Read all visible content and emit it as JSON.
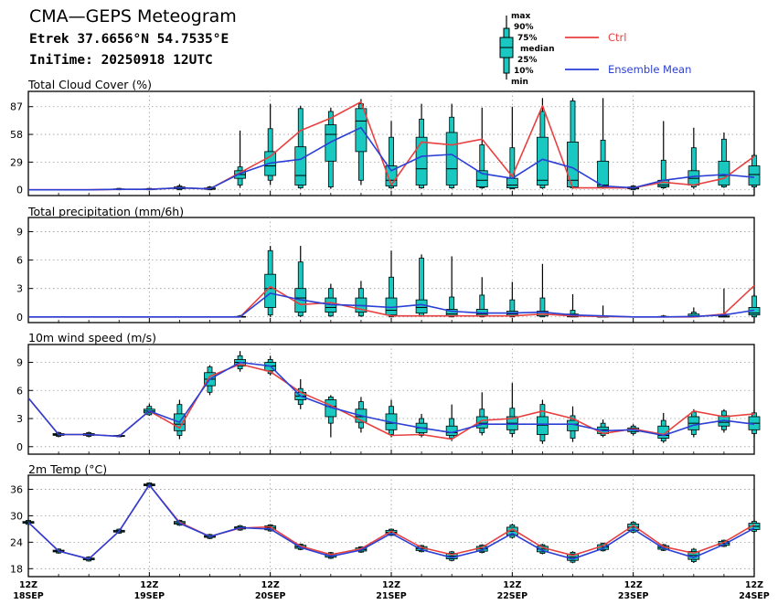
{
  "header": {
    "title": "CMA—GEPS Meteogram",
    "location": "Etrek 37.6656°N 54.7535°E",
    "init_time": "IniTime: 20250918 12UTC"
  },
  "legend": {
    "box_labels": [
      "max",
      "90%",
      "75%",
      "median",
      "25%",
      "10%",
      "min"
    ],
    "ctrl_label": "Ctrl",
    "mean_label": "Ensemble Mean",
    "ctrl_color": "#e84040",
    "mean_color": "#2a3fd6",
    "box_color": "#19c8c0"
  },
  "x_axis": {
    "ticks": [
      {
        "t": 0,
        "hour": "12Z",
        "date": "18SEP"
      },
      {
        "t": 24,
        "hour": "12Z",
        "date": "19SEP"
      },
      {
        "t": 48,
        "hour": "12Z",
        "date": "20SEP"
      },
      {
        "t": 72,
        "hour": "12Z",
        "date": "21SEP"
      },
      {
        "t": 96,
        "hour": "12Z",
        "date": "22SEP"
      },
      {
        "t": 120,
        "hour": "12Z",
        "date": "23SEP"
      },
      {
        "t": 144,
        "hour": "12Z",
        "date": "24SEP"
      }
    ]
  },
  "chart_data": [
    {
      "type": "box",
      "title": "Total Cloud Cover (%)",
      "ylim": [
        -6,
        103
      ],
      "yticks": [
        0,
        29,
        58,
        87
      ],
      "times": [
        0,
        6,
        12,
        18,
        24,
        30,
        36,
        42,
        48,
        54,
        60,
        66,
        72,
        78,
        84,
        90,
        96,
        102,
        108,
        114,
        120,
        126,
        132,
        138,
        144
      ],
      "ctrl": [
        0,
        0,
        0,
        0.5,
        0.5,
        2,
        1,
        18,
        35,
        62,
        75,
        92,
        5,
        50,
        47,
        53,
        14,
        88,
        2,
        2,
        2,
        8,
        5,
        12,
        35
      ],
      "mean": [
        0,
        0,
        0,
        0.5,
        0.5,
        2,
        1,
        17,
        28,
        32,
        50,
        65,
        20,
        35,
        37,
        17,
        12,
        32,
        23,
        4,
        2,
        10,
        14,
        16,
        13
      ],
      "boxes": [
        {
          "t": 18,
          "min": 0,
          "p10": 0,
          "p25": 0.5,
          "med": 0.5,
          "p75": 1,
          "p90": 1.5,
          "max": 2
        },
        {
          "t": 24,
          "min": 0,
          "p10": 0,
          "p25": 0.5,
          "med": 0.5,
          "p75": 1,
          "p90": 1.5,
          "max": 2
        },
        {
          "t": 30,
          "min": 0,
          "p10": 0,
          "p25": 1,
          "med": 2,
          "p75": 3,
          "p90": 4,
          "max": 6
        },
        {
          "t": 36,
          "min": 0,
          "p10": 0,
          "p25": 0.5,
          "med": 1,
          "p75": 2,
          "p90": 3,
          "max": 4
        },
        {
          "t": 42,
          "min": 2,
          "p10": 5,
          "p25": 12,
          "med": 16,
          "p75": 20,
          "p90": 24,
          "max": 62
        },
        {
          "t": 48,
          "min": 5,
          "p10": 10,
          "p25": 15,
          "med": 25,
          "p75": 40,
          "p90": 64,
          "max": 90
        },
        {
          "t": 54,
          "min": 1,
          "p10": 2,
          "p25": 5,
          "med": 15,
          "p75": 45,
          "p90": 85,
          "max": 88
        },
        {
          "t": 60,
          "min": 1,
          "p10": 3,
          "p25": 30,
          "med": 58,
          "p75": 68,
          "p90": 82,
          "max": 86
        },
        {
          "t": 66,
          "min": 5,
          "p10": 10,
          "p25": 40,
          "med": 72,
          "p75": 85,
          "p90": 90,
          "max": 95
        },
        {
          "t": 72,
          "min": 1,
          "p10": 2,
          "p25": 4,
          "med": 10,
          "p75": 25,
          "p90": 55,
          "max": 72
        },
        {
          "t": 78,
          "min": 1,
          "p10": 2,
          "p25": 5,
          "med": 22,
          "p75": 55,
          "p90": 74,
          "max": 90
        },
        {
          "t": 84,
          "min": 1,
          "p10": 2,
          "p25": 5,
          "med": 22,
          "p75": 60,
          "p90": 76,
          "max": 90
        },
        {
          "t": 90,
          "min": 1,
          "p10": 2,
          "p25": 3,
          "med": 10,
          "p75": 20,
          "p90": 47,
          "max": 86
        },
        {
          "t": 96,
          "min": 1,
          "p10": 1,
          "p25": 2,
          "med": 5,
          "p75": 12,
          "p90": 44,
          "max": 87
        },
        {
          "t": 102,
          "min": 1,
          "p10": 2,
          "p25": 5,
          "med": 10,
          "p75": 55,
          "p90": 82,
          "max": 96
        },
        {
          "t": 108,
          "min": 1,
          "p10": 2,
          "p25": 3,
          "med": 10,
          "p75": 50,
          "p90": 93,
          "max": 96
        },
        {
          "t": 114,
          "min": 1,
          "p10": 2,
          "p25": 3,
          "med": 5,
          "p75": 30,
          "p90": 52,
          "max": 96
        },
        {
          "t": 120,
          "min": 0,
          "p10": 0,
          "p25": 1,
          "med": 2,
          "p75": 3,
          "p90": 4,
          "max": 5
        },
        {
          "t": 126,
          "min": 1,
          "p10": 2,
          "p25": 3,
          "med": 5,
          "p75": 10,
          "p90": 31,
          "max": 72
        },
        {
          "t": 132,
          "min": 1,
          "p10": 3,
          "p25": 5,
          "med": 12,
          "p75": 20,
          "p90": 44,
          "max": 65
        },
        {
          "t": 138,
          "min": 2,
          "p10": 3,
          "p25": 5,
          "med": 15,
          "p75": 30,
          "p90": 53,
          "max": 60
        },
        {
          "t": 144,
          "min": 2,
          "p10": 3,
          "p25": 5,
          "med": 16,
          "p75": 25,
          "p90": 36,
          "max": 38
        }
      ]
    },
    {
      "type": "box",
      "title": "Total precipitation (mm/6h)",
      "ylim": [
        -0.6,
        10.5
      ],
      "yticks": [
        0,
        3,
        6,
        9
      ],
      "times": [
        0,
        6,
        12,
        18,
        24,
        30,
        36,
        42,
        48,
        54,
        60,
        66,
        72,
        78,
        84,
        90,
        96,
        102,
        108,
        114,
        120,
        126,
        132,
        138,
        144
      ],
      "ctrl": [
        0,
        0,
        0,
        0,
        0,
        0,
        0,
        0,
        3.2,
        1.3,
        1.5,
        0.8,
        0.1,
        0.1,
        0.1,
        0.1,
        0.1,
        0.3,
        0.1,
        0.05,
        0,
        0,
        0,
        0.3,
        3.3
      ],
      "mean": [
        0,
        0,
        0,
        0,
        0,
        0,
        0,
        0,
        2.5,
        1.8,
        1.3,
        1.2,
        1.0,
        1.3,
        0.6,
        0.4,
        0.4,
        0.5,
        0.2,
        0.1,
        0,
        0,
        0.05,
        0.2,
        0.7
      ],
      "boxes": [
        {
          "t": 42,
          "min": 0,
          "p10": 0,
          "p25": 0,
          "med": 0,
          "p75": 0.05,
          "p90": 0.1,
          "max": 0.2
        },
        {
          "t": 48,
          "min": 0,
          "p10": 0.2,
          "p25": 1,
          "med": 3,
          "p75": 4.5,
          "p90": 7,
          "max": 7.5
        },
        {
          "t": 54,
          "min": 0,
          "p10": 0.1,
          "p25": 0.5,
          "med": 2,
          "p75": 3,
          "p90": 5.8,
          "max": 7.5
        },
        {
          "t": 60,
          "min": 0,
          "p10": 0.1,
          "p25": 0.5,
          "med": 1,
          "p75": 2,
          "p90": 3,
          "max": 3.5
        },
        {
          "t": 66,
          "min": 0,
          "p10": 0.1,
          "p25": 0.5,
          "med": 1.2,
          "p75": 2,
          "p90": 3,
          "max": 3.8
        },
        {
          "t": 72,
          "min": 0,
          "p10": 0,
          "p25": 0.2,
          "med": 0.7,
          "p75": 2,
          "p90": 4.2,
          "max": 7
        },
        {
          "t": 78,
          "min": 0,
          "p10": 0.1,
          "p25": 0.4,
          "med": 1,
          "p75": 1.8,
          "p90": 6.2,
          "max": 6.6
        },
        {
          "t": 84,
          "min": 0,
          "p10": 0,
          "p25": 0.1,
          "med": 0.3,
          "p75": 0.8,
          "p90": 2.1,
          "max": 6.4
        },
        {
          "t": 90,
          "min": 0,
          "p10": 0,
          "p25": 0.1,
          "med": 0.3,
          "p75": 0.8,
          "p90": 2.3,
          "max": 4.2
        },
        {
          "t": 96,
          "min": 0,
          "p10": 0,
          "p25": 0.1,
          "med": 0.3,
          "p75": 0.6,
          "p90": 1.8,
          "max": 3.7
        },
        {
          "t": 102,
          "min": 0,
          "p10": 0,
          "p25": 0.1,
          "med": 0.3,
          "p75": 0.6,
          "p90": 2,
          "max": 5.6
        },
        {
          "t": 108,
          "min": 0,
          "p10": 0,
          "p25": 0,
          "med": 0.1,
          "p75": 0.3,
          "p90": 0.7,
          "max": 2.4
        },
        {
          "t": 114,
          "min": 0,
          "p10": 0,
          "p25": 0,
          "med": 0,
          "p75": 0.05,
          "p90": 0.1,
          "max": 1.2
        },
        {
          "t": 126,
          "min": 0,
          "p10": 0,
          "p25": 0,
          "med": 0,
          "p75": 0.05,
          "p90": 0.1,
          "max": 0.2
        },
        {
          "t": 132,
          "min": 0,
          "p10": 0,
          "p25": 0,
          "med": 0.1,
          "p75": 0.3,
          "p90": 0.5,
          "max": 1
        },
        {
          "t": 138,
          "min": 0,
          "p10": 0,
          "p25": 0,
          "med": 0,
          "p75": 0.1,
          "p90": 0.3,
          "max": 3
        },
        {
          "t": 144,
          "min": 0,
          "p10": 0,
          "p25": 0.2,
          "med": 0.4,
          "p75": 1,
          "p90": 2.2,
          "max": 2.4
        }
      ]
    },
    {
      "type": "box",
      "title": "10m wind speed (m/s)",
      "ylim": [
        -0.8,
        10.9
      ],
      "yticks": [
        0,
        3,
        6,
        9
      ],
      "times": [
        0,
        6,
        12,
        18,
        24,
        30,
        36,
        42,
        48,
        54,
        60,
        66,
        72,
        78,
        84,
        90,
        96,
        102,
        108,
        114,
        120,
        126,
        132,
        138,
        144
      ],
      "ctrl": [
        5.2,
        1.3,
        1.3,
        1.1,
        3.8,
        2.0,
        7.5,
        8.8,
        8.0,
        5.8,
        4.4,
        2.8,
        1.2,
        1.3,
        0.8,
        2.8,
        3.0,
        3.8,
        3.0,
        1.4,
        1.9,
        1.3,
        3.8,
        3.2,
        3.5
      ],
      "mean": [
        5.2,
        1.3,
        1.3,
        1.1,
        3.8,
        2.6,
        7.2,
        9.0,
        8.6,
        5.4,
        4.2,
        3.3,
        2.6,
        2.0,
        1.5,
        2.4,
        2.4,
        2.4,
        2.4,
        1.7,
        1.8,
        1.2,
        2.3,
        2.8,
        2.4
      ],
      "boxes": [
        {
          "t": 6,
          "min": 1,
          "p10": 1.1,
          "p25": 1.2,
          "med": 1.3,
          "p75": 1.4,
          "p90": 1.5,
          "max": 1.6
        },
        {
          "t": 12,
          "min": 1,
          "p10": 1.1,
          "p25": 1.2,
          "med": 1.3,
          "p75": 1.4,
          "p90": 1.5,
          "max": 1.6
        },
        {
          "t": 18,
          "min": 1,
          "p10": 1.05,
          "p25": 1.1,
          "med": 1.1,
          "p75": 1.2,
          "p90": 1.2,
          "max": 1.3
        },
        {
          "t": 24,
          "min": 3.3,
          "p10": 3.4,
          "p25": 3.6,
          "med": 3.8,
          "p75": 4,
          "p90": 4.3,
          "max": 4.6
        },
        {
          "t": 30,
          "min": 0.8,
          "p10": 1.2,
          "p25": 1.7,
          "med": 2.4,
          "p75": 3.5,
          "p90": 4.5,
          "max": 5
        },
        {
          "t": 36,
          "min": 5.5,
          "p10": 5.8,
          "p25": 6.5,
          "med": 7.2,
          "p75": 7.9,
          "p90": 8.5,
          "max": 8.7
        },
        {
          "t": 42,
          "min": 8,
          "p10": 8.3,
          "p25": 8.6,
          "med": 9,
          "p75": 9.3,
          "p90": 9.7,
          "max": 10.2
        },
        {
          "t": 48,
          "min": 7.6,
          "p10": 7.8,
          "p25": 8.1,
          "med": 8.6,
          "p75": 9,
          "p90": 9.3,
          "max": 9.7
        },
        {
          "t": 54,
          "min": 4,
          "p10": 4.5,
          "p25": 5,
          "med": 5.4,
          "p75": 5.8,
          "p90": 6.2,
          "max": 7.2
        },
        {
          "t": 60,
          "min": 1,
          "p10": 2.5,
          "p25": 3.2,
          "med": 4.3,
          "p75": 5,
          "p90": 5.3,
          "max": 5.5
        },
        {
          "t": 66,
          "min": 1.5,
          "p10": 2,
          "p25": 2.6,
          "med": 3.2,
          "p75": 4,
          "p90": 4.8,
          "max": 5.3
        },
        {
          "t": 72,
          "min": 1,
          "p10": 1.3,
          "p25": 1.8,
          "med": 2.5,
          "p75": 3.5,
          "p90": 4.3,
          "max": 5
        },
        {
          "t": 78,
          "min": 1,
          "p10": 1.2,
          "p25": 1.5,
          "med": 2,
          "p75": 2.5,
          "p90": 3,
          "max": 3.5
        },
        {
          "t": 84,
          "min": 0.6,
          "p10": 0.9,
          "p25": 1.2,
          "med": 1.5,
          "p75": 2.2,
          "p90": 3,
          "max": 4.5
        },
        {
          "t": 90,
          "min": 1.2,
          "p10": 1.5,
          "p25": 2,
          "med": 2.5,
          "p75": 3.2,
          "p90": 4,
          "max": 5.8
        },
        {
          "t": 96,
          "min": 1,
          "p10": 1.4,
          "p25": 1.8,
          "med": 2.5,
          "p75": 3.2,
          "p90": 4.1,
          "max": 6.8
        },
        {
          "t": 102,
          "min": 0.3,
          "p10": 0.6,
          "p25": 1.3,
          "med": 2.3,
          "p75": 3.2,
          "p90": 4.5,
          "max": 5
        },
        {
          "t": 108,
          "min": 0.5,
          "p10": 0.9,
          "p25": 1.7,
          "med": 2.4,
          "p75": 2.8,
          "p90": 3.3,
          "max": 4.3
        },
        {
          "t": 114,
          "min": 1,
          "p10": 1.2,
          "p25": 1.4,
          "med": 1.8,
          "p75": 2.1,
          "p90": 2.5,
          "max": 2.9
        },
        {
          "t": 120,
          "min": 1.2,
          "p10": 1.4,
          "p25": 1.6,
          "med": 1.8,
          "p75": 2,
          "p90": 2.2,
          "max": 2.4
        },
        {
          "t": 126,
          "min": 0.4,
          "p10": 0.6,
          "p25": 0.9,
          "med": 1.2,
          "p75": 2.2,
          "p90": 2.8,
          "max": 3.6
        },
        {
          "t": 132,
          "min": 1,
          "p10": 1.3,
          "p25": 1.8,
          "med": 2.5,
          "p75": 3.2,
          "p90": 3.7,
          "max": 4
        },
        {
          "t": 138,
          "min": 1.5,
          "p10": 1.8,
          "p25": 2.2,
          "med": 2.6,
          "p75": 3.3,
          "p90": 3.8,
          "max": 4
        },
        {
          "t": 144,
          "min": 1,
          "p10": 1.4,
          "p25": 1.8,
          "med": 2.5,
          "p75": 3.2,
          "p90": 3.6,
          "max": 3.9
        }
      ]
    },
    {
      "type": "box",
      "title": "2m Temp (°C)",
      "ylim": [
        16.2,
        39.2
      ],
      "yticks": [
        18,
        24,
        30,
        36
      ],
      "times": [
        0,
        6,
        12,
        18,
        24,
        30,
        36,
        42,
        48,
        54,
        60,
        66,
        72,
        78,
        84,
        90,
        96,
        102,
        108,
        114,
        120,
        126,
        132,
        138,
        144
      ],
      "ctrl": [
        28.5,
        22,
        20.2,
        26.5,
        37,
        28.5,
        25.3,
        27.2,
        27.5,
        23.1,
        21.2,
        22.5,
        26.5,
        22.8,
        21.2,
        22.8,
        27,
        22.8,
        21,
        23.2,
        27.8,
        23,
        21.5,
        24,
        28
      ],
      "mean": [
        28.5,
        22,
        20.2,
        26.5,
        37,
        28.3,
        25.3,
        27.3,
        27,
        22.8,
        20.8,
        22.2,
        26,
        22.3,
        20.5,
        22.2,
        26,
        22.1,
        20.2,
        22.6,
        27,
        22.6,
        20.5,
        23.5,
        27.2
      ]
    }
  ]
}
